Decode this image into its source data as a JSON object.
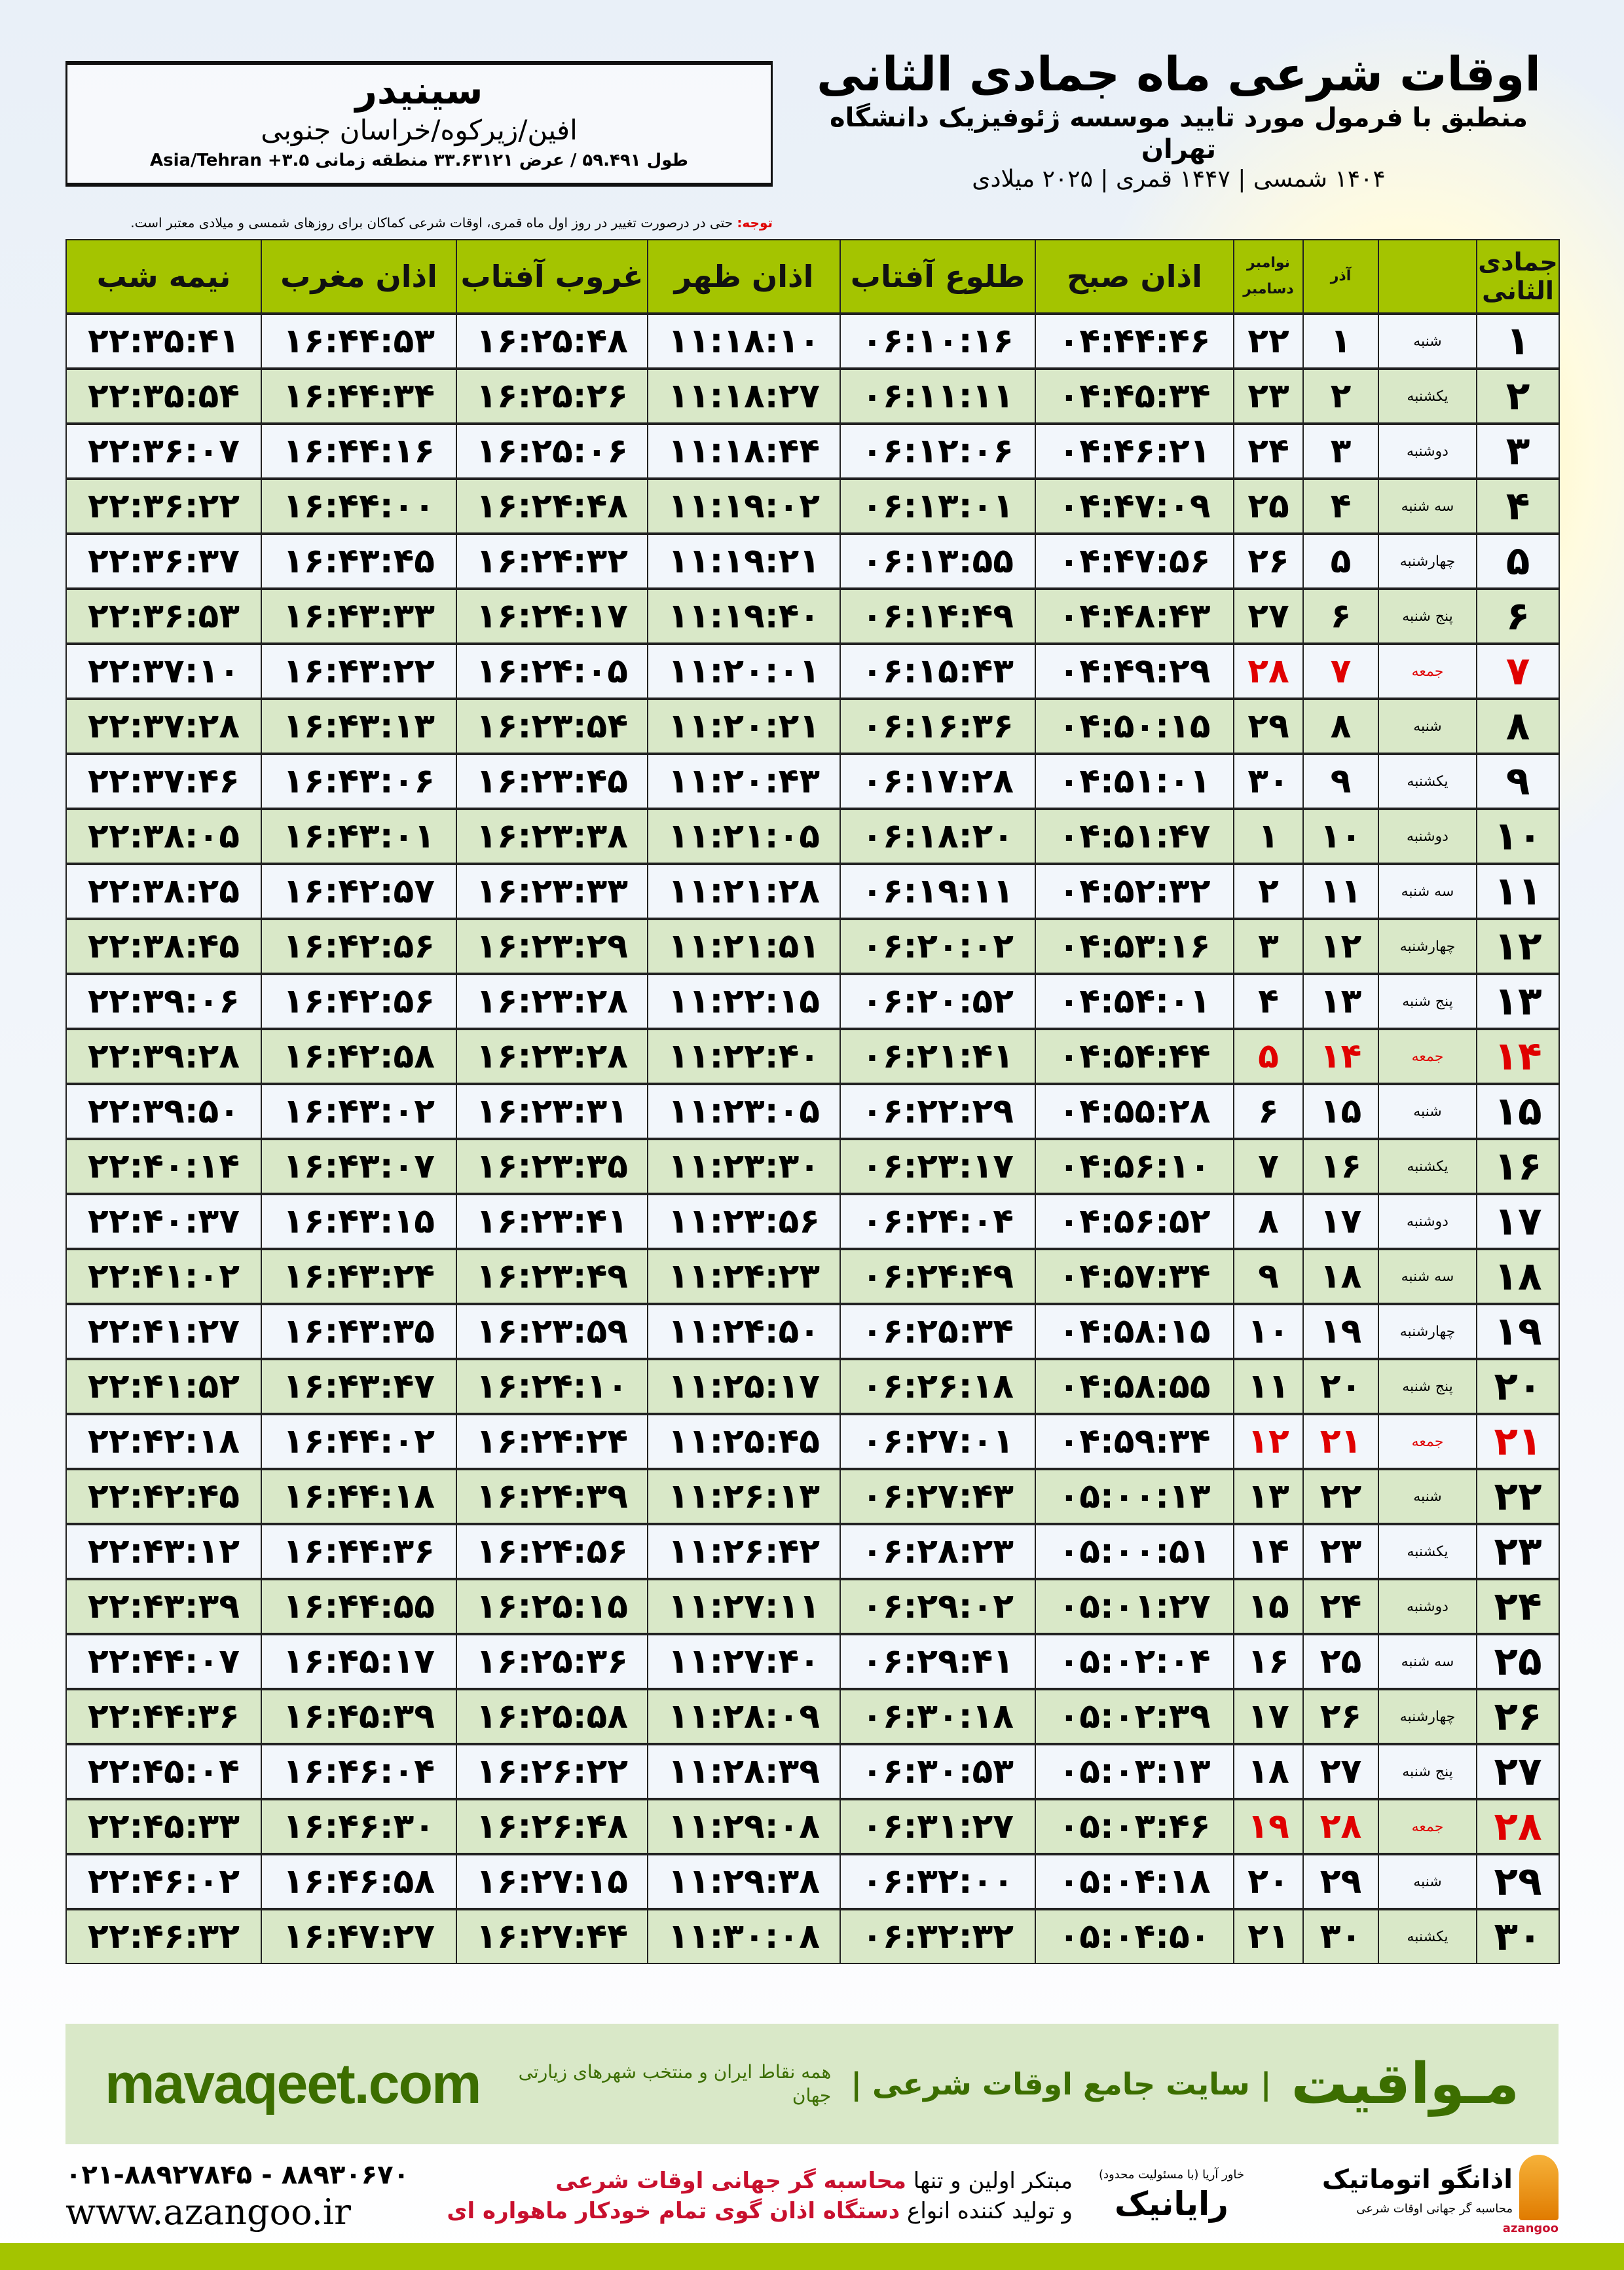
{
  "location": {
    "name": "سینیدر",
    "region": "افین/زیرکوه/خراسان جنوبی",
    "coords": "طول ۵۹.۴۹۱ / عرض ۳۳.۶۳۱۲۱ منطقه زمانی Asia/Tehran +۳.۵"
  },
  "header": {
    "title": "اوقات شرعی ماه جمادی الثانی",
    "subtitle": "منطبق با فرمول مورد تایید موسسه ژئوفیزیک دانشگاه تهران",
    "years": "۱۴۰۴ شمسی | ۱۴۴۷ قمری | ۲۰۲۵ میلادی",
    "note_label": "توجه:",
    "note_text": " حتی در درصورت تغییر در روز اول ماه قمری، اوقات شرعی کماکان برای روزهای شمسی و میلادی معتبر است."
  },
  "colors": {
    "header_green": "#a4c400",
    "row_green": "#d9e8c8",
    "friday_red": "#e00000",
    "brand_green": "#3c6e00"
  },
  "table": {
    "columns": {
      "hijri": "جمادی الثانی",
      "azar": "آذر",
      "gregorian_top": "نوامبر",
      "gregorian_bottom": "دسامبر",
      "fajr": "اذان صبح",
      "sunrise": "طلوع آفتاب",
      "dhuhr": "اذان ظهر",
      "sunset": "غروب آفتاب",
      "maghrib": "اذان مغرب",
      "midnight": "نیمه شب"
    },
    "rows": [
      {
        "hijri": "۱",
        "weekday": "شنبه",
        "azar": "۱",
        "greg": "۲۲",
        "fajr": "۰۴:۴۴:۴۶",
        "sunrise": "۰۶:۱۰:۱۶",
        "dhuhr": "۱۱:۱۸:۱۰",
        "sunset": "۱۶:۲۵:۴۸",
        "maghrib": "۱۶:۴۴:۵۳",
        "midnight": "۲۲:۳۵:۴۱",
        "friday": false
      },
      {
        "hijri": "۲",
        "weekday": "یکشنبه",
        "azar": "۲",
        "greg": "۲۳",
        "fajr": "۰۴:۴۵:۳۴",
        "sunrise": "۰۶:۱۱:۱۱",
        "dhuhr": "۱۱:۱۸:۲۷",
        "sunset": "۱۶:۲۵:۲۶",
        "maghrib": "۱۶:۴۴:۳۴",
        "midnight": "۲۲:۳۵:۵۴",
        "friday": false
      },
      {
        "hijri": "۳",
        "weekday": "دوشنبه",
        "azar": "۳",
        "greg": "۲۴",
        "fajr": "۰۴:۴۶:۲۱",
        "sunrise": "۰۶:۱۲:۰۶",
        "dhuhr": "۱۱:۱۸:۴۴",
        "sunset": "۱۶:۲۵:۰۶",
        "maghrib": "۱۶:۴۴:۱۶",
        "midnight": "۲۲:۳۶:۰۷",
        "friday": false
      },
      {
        "hijri": "۴",
        "weekday": "سه شنبه",
        "azar": "۴",
        "greg": "۲۵",
        "fajr": "۰۴:۴۷:۰۹",
        "sunrise": "۰۶:۱۳:۰۱",
        "dhuhr": "۱۱:۱۹:۰۲",
        "sunset": "۱۶:۲۴:۴۸",
        "maghrib": "۱۶:۴۴:۰۰",
        "midnight": "۲۲:۳۶:۲۲",
        "friday": false
      },
      {
        "hijri": "۵",
        "weekday": "چهارشنبه",
        "azar": "۵",
        "greg": "۲۶",
        "fajr": "۰۴:۴۷:۵۶",
        "sunrise": "۰۶:۱۳:۵۵",
        "dhuhr": "۱۱:۱۹:۲۱",
        "sunset": "۱۶:۲۴:۳۲",
        "maghrib": "۱۶:۴۳:۴۵",
        "midnight": "۲۲:۳۶:۳۷",
        "friday": false
      },
      {
        "hijri": "۶",
        "weekday": "پنج شنبه",
        "azar": "۶",
        "greg": "۲۷",
        "fajr": "۰۴:۴۸:۴۳",
        "sunrise": "۰۶:۱۴:۴۹",
        "dhuhr": "۱۱:۱۹:۴۰",
        "sunset": "۱۶:۲۴:۱۷",
        "maghrib": "۱۶:۴۳:۳۳",
        "midnight": "۲۲:۳۶:۵۳",
        "friday": false
      },
      {
        "hijri": "۷",
        "weekday": "جمعه",
        "azar": "۷",
        "greg": "۲۸",
        "fajr": "۰۴:۴۹:۲۹",
        "sunrise": "۰۶:۱۵:۴۳",
        "dhuhr": "۱۱:۲۰:۰۱",
        "sunset": "۱۶:۲۴:۰۵",
        "maghrib": "۱۶:۴۳:۲۲",
        "midnight": "۲۲:۳۷:۱۰",
        "friday": true
      },
      {
        "hijri": "۸",
        "weekday": "شنبه",
        "azar": "۸",
        "greg": "۲۹",
        "fajr": "۰۴:۵۰:۱۵",
        "sunrise": "۰۶:۱۶:۳۶",
        "dhuhr": "۱۱:۲۰:۲۱",
        "sunset": "۱۶:۲۳:۵۴",
        "maghrib": "۱۶:۴۳:۱۳",
        "midnight": "۲۲:۳۷:۲۸",
        "friday": false
      },
      {
        "hijri": "۹",
        "weekday": "یکشنبه",
        "azar": "۹",
        "greg": "۳۰",
        "fajr": "۰۴:۵۱:۰۱",
        "sunrise": "۰۶:۱۷:۲۸",
        "dhuhr": "۱۱:۲۰:۴۳",
        "sunset": "۱۶:۲۳:۴۵",
        "maghrib": "۱۶:۴۳:۰۶",
        "midnight": "۲۲:۳۷:۴۶",
        "friday": false
      },
      {
        "hijri": "۱۰",
        "weekday": "دوشنبه",
        "azar": "۱۰",
        "greg": "۱",
        "fajr": "۰۴:۵۱:۴۷",
        "sunrise": "۰۶:۱۸:۲۰",
        "dhuhr": "۱۱:۲۱:۰۵",
        "sunset": "۱۶:۲۳:۳۸",
        "maghrib": "۱۶:۴۳:۰۱",
        "midnight": "۲۲:۳۸:۰۵",
        "friday": false
      },
      {
        "hijri": "۱۱",
        "weekday": "سه شنبه",
        "azar": "۱۱",
        "greg": "۲",
        "fajr": "۰۴:۵۲:۳۲",
        "sunrise": "۰۶:۱۹:۱۱",
        "dhuhr": "۱۱:۲۱:۲۸",
        "sunset": "۱۶:۲۳:۳۳",
        "maghrib": "۱۶:۴۲:۵۷",
        "midnight": "۲۲:۳۸:۲۵",
        "friday": false
      },
      {
        "hijri": "۱۲",
        "weekday": "چهارشنبه",
        "azar": "۱۲",
        "greg": "۳",
        "fajr": "۰۴:۵۳:۱۶",
        "sunrise": "۰۶:۲۰:۰۲",
        "dhuhr": "۱۱:۲۱:۵۱",
        "sunset": "۱۶:۲۳:۲۹",
        "maghrib": "۱۶:۴۲:۵۶",
        "midnight": "۲۲:۳۸:۴۵",
        "friday": false
      },
      {
        "hijri": "۱۳",
        "weekday": "پنج شنبه",
        "azar": "۱۳",
        "greg": "۴",
        "fajr": "۰۴:۵۴:۰۱",
        "sunrise": "۰۶:۲۰:۵۲",
        "dhuhr": "۱۱:۲۲:۱۵",
        "sunset": "۱۶:۲۳:۲۸",
        "maghrib": "۱۶:۴۲:۵۶",
        "midnight": "۲۲:۳۹:۰۶",
        "friday": false
      },
      {
        "hijri": "۱۴",
        "weekday": "جمعه",
        "azar": "۱۴",
        "greg": "۵",
        "fajr": "۰۴:۵۴:۴۴",
        "sunrise": "۰۶:۲۱:۴۱",
        "dhuhr": "۱۱:۲۲:۴۰",
        "sunset": "۱۶:۲۳:۲۸",
        "maghrib": "۱۶:۴۲:۵۸",
        "midnight": "۲۲:۳۹:۲۸",
        "friday": true
      },
      {
        "hijri": "۱۵",
        "weekday": "شنبه",
        "azar": "۱۵",
        "greg": "۶",
        "fajr": "۰۴:۵۵:۲۸",
        "sunrise": "۰۶:۲۲:۲۹",
        "dhuhr": "۱۱:۲۳:۰۵",
        "sunset": "۱۶:۲۳:۳۱",
        "maghrib": "۱۶:۴۳:۰۲",
        "midnight": "۲۲:۳۹:۵۰",
        "friday": false
      },
      {
        "hijri": "۱۶",
        "weekday": "یکشنبه",
        "azar": "۱۶",
        "greg": "۷",
        "fajr": "۰۴:۵۶:۱۰",
        "sunrise": "۰۶:۲۳:۱۷",
        "dhuhr": "۱۱:۲۳:۳۰",
        "sunset": "۱۶:۲۳:۳۵",
        "maghrib": "۱۶:۴۳:۰۷",
        "midnight": "۲۲:۴۰:۱۴",
        "friday": false
      },
      {
        "hijri": "۱۷",
        "weekday": "دوشنبه",
        "azar": "۱۷",
        "greg": "۸",
        "fajr": "۰۴:۵۶:۵۲",
        "sunrise": "۰۶:۲۴:۰۴",
        "dhuhr": "۱۱:۲۳:۵۶",
        "sunset": "۱۶:۲۳:۴۱",
        "maghrib": "۱۶:۴۳:۱۵",
        "midnight": "۲۲:۴۰:۳۷",
        "friday": false
      },
      {
        "hijri": "۱۸",
        "weekday": "سه شنبه",
        "azar": "۱۸",
        "greg": "۹",
        "fajr": "۰۴:۵۷:۳۴",
        "sunrise": "۰۶:۲۴:۴۹",
        "dhuhr": "۱۱:۲۴:۲۳",
        "sunset": "۱۶:۲۳:۴۹",
        "maghrib": "۱۶:۴۳:۲۴",
        "midnight": "۲۲:۴۱:۰۲",
        "friday": false
      },
      {
        "hijri": "۱۹",
        "weekday": "چهارشنبه",
        "azar": "۱۹",
        "greg": "۱۰",
        "fajr": "۰۴:۵۸:۱۵",
        "sunrise": "۰۶:۲۵:۳۴",
        "dhuhr": "۱۱:۲۴:۵۰",
        "sunset": "۱۶:۲۳:۵۹",
        "maghrib": "۱۶:۴۳:۳۵",
        "midnight": "۲۲:۴۱:۲۷",
        "friday": false
      },
      {
        "hijri": "۲۰",
        "weekday": "پنج شنبه",
        "azar": "۲۰",
        "greg": "۱۱",
        "fajr": "۰۴:۵۸:۵۵",
        "sunrise": "۰۶:۲۶:۱۸",
        "dhuhr": "۱۱:۲۵:۱۷",
        "sunset": "۱۶:۲۴:۱۰",
        "maghrib": "۱۶:۴۳:۴۷",
        "midnight": "۲۲:۴۱:۵۲",
        "friday": false
      },
      {
        "hijri": "۲۱",
        "weekday": "جمعه",
        "azar": "۲۱",
        "greg": "۱۲",
        "fajr": "۰۴:۵۹:۳۴",
        "sunrise": "۰۶:۲۷:۰۱",
        "dhuhr": "۱۱:۲۵:۴۵",
        "sunset": "۱۶:۲۴:۲۴",
        "maghrib": "۱۶:۴۴:۰۲",
        "midnight": "۲۲:۴۲:۱۸",
        "friday": true
      },
      {
        "hijri": "۲۲",
        "weekday": "شنبه",
        "azar": "۲۲",
        "greg": "۱۳",
        "fajr": "۰۵:۰۰:۱۳",
        "sunrise": "۰۶:۲۷:۴۳",
        "dhuhr": "۱۱:۲۶:۱۳",
        "sunset": "۱۶:۲۴:۳۹",
        "maghrib": "۱۶:۴۴:۱۸",
        "midnight": "۲۲:۴۲:۴۵",
        "friday": false
      },
      {
        "hijri": "۲۳",
        "weekday": "یکشنبه",
        "azar": "۲۳",
        "greg": "۱۴",
        "fajr": "۰۵:۰۰:۵۱",
        "sunrise": "۰۶:۲۸:۲۳",
        "dhuhr": "۱۱:۲۶:۴۲",
        "sunset": "۱۶:۲۴:۵۶",
        "maghrib": "۱۶:۴۴:۳۶",
        "midnight": "۲۲:۴۳:۱۲",
        "friday": false
      },
      {
        "hijri": "۲۴",
        "weekday": "دوشنبه",
        "azar": "۲۴",
        "greg": "۱۵",
        "fajr": "۰۵:۰۱:۲۷",
        "sunrise": "۰۶:۲۹:۰۲",
        "dhuhr": "۱۱:۲۷:۱۱",
        "sunset": "۱۶:۲۵:۱۵",
        "maghrib": "۱۶:۴۴:۵۵",
        "midnight": "۲۲:۴۳:۳۹",
        "friday": false
      },
      {
        "hijri": "۲۵",
        "weekday": "سه شنبه",
        "azar": "۲۵",
        "greg": "۱۶",
        "fajr": "۰۵:۰۲:۰۴",
        "sunrise": "۰۶:۲۹:۴۱",
        "dhuhr": "۱۱:۲۷:۴۰",
        "sunset": "۱۶:۲۵:۳۶",
        "maghrib": "۱۶:۴۵:۱۷",
        "midnight": "۲۲:۴۴:۰۷",
        "friday": false
      },
      {
        "hijri": "۲۶",
        "weekday": "چهارشنبه",
        "azar": "۲۶",
        "greg": "۱۷",
        "fajr": "۰۵:۰۲:۳۹",
        "sunrise": "۰۶:۳۰:۱۸",
        "dhuhr": "۱۱:۲۸:۰۹",
        "sunset": "۱۶:۲۵:۵۸",
        "maghrib": "۱۶:۴۵:۳۹",
        "midnight": "۲۲:۴۴:۳۶",
        "friday": false
      },
      {
        "hijri": "۲۷",
        "weekday": "پنج شنبه",
        "azar": "۲۷",
        "greg": "۱۸",
        "fajr": "۰۵:۰۳:۱۳",
        "sunrise": "۰۶:۳۰:۵۳",
        "dhuhr": "۱۱:۲۸:۳۹",
        "sunset": "۱۶:۲۶:۲۲",
        "maghrib": "۱۶:۴۶:۰۴",
        "midnight": "۲۲:۴۵:۰۴",
        "friday": false
      },
      {
        "hijri": "۲۸",
        "weekday": "جمعه",
        "azar": "۲۸",
        "greg": "۱۹",
        "fajr": "۰۵:۰۳:۴۶",
        "sunrise": "۰۶:۳۱:۲۷",
        "dhuhr": "۱۱:۲۹:۰۸",
        "sunset": "۱۶:۲۶:۴۸",
        "maghrib": "۱۶:۴۶:۳۰",
        "midnight": "۲۲:۴۵:۳۳",
        "friday": true
      },
      {
        "hijri": "۲۹",
        "weekday": "شنبه",
        "azar": "۲۹",
        "greg": "۲۰",
        "fajr": "۰۵:۰۴:۱۸",
        "sunrise": "۰۶:۳۲:۰۰",
        "dhuhr": "۱۱:۲۹:۳۸",
        "sunset": "۱۶:۲۷:۱۵",
        "maghrib": "۱۶:۴۶:۵۸",
        "midnight": "۲۲:۴۶:۰۲",
        "friday": false
      },
      {
        "hijri": "۳۰",
        "weekday": "یکشنبه",
        "azar": "۳۰",
        "greg": "۲۱",
        "fajr": "۰۵:۰۴:۵۰",
        "sunrise": "۰۶:۳۲:۳۲",
        "dhuhr": "۱۱:۳۰:۰۸",
        "sunset": "۱۶:۲۷:۴۴",
        "maghrib": "۱۶:۴۷:۲۷",
        "midnight": "۲۲:۴۶:۳۲",
        "friday": false
      }
    ]
  },
  "footer": {
    "brand": "مـواقیت",
    "tagline": "| سایت جامع اوقات شرعی |",
    "tagline_sub": "همه نقاط ایران و منتخب شهرهای زیارتی جهان",
    "url": "mavaqeet.com",
    "phone": "۰۲۱-۸۸۹۲۷۸۴۵ - ۸۸۹۳۰۶۷۰",
    "web": "www.azangoo.ir",
    "promo_line1_a": "مبتکر اولین و تنها ",
    "promo_line1_b": "محاسبه گر جهانی اوقات شرعی",
    "promo_line2_a": "و تولید کننده انواع ",
    "promo_line2_b": "دستگاه اذان گوی تمام خودکار ماهواره ای",
    "rayanik": "رایانیک",
    "rayanik_small": "خاور آریا (با مسئولیت محدود)",
    "azangoo_fa": "اذانگو اتوماتیک",
    "azangoo_tag": "محاسبه گر جهانی اوقات شرعی",
    "azangoo_en": "azangoo"
  }
}
